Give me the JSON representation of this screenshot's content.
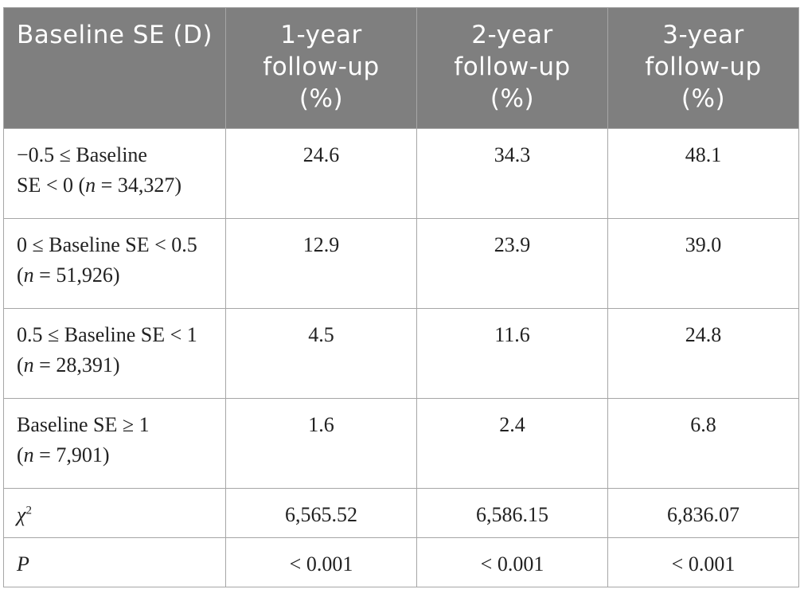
{
  "header": {
    "col1": "Baseline SE (D)",
    "col2": "1-year follow-up (%)",
    "col3": "2-year follow-up (%)",
    "col4": "3-year follow-up (%)"
  },
  "rows": [
    {
      "label_line1": "−0.5 ≤ Baseline",
      "label_line2_prefix": "SE < 0 (",
      "label_line2_n": "n",
      "label_line2_rest": " = 34,327)",
      "v1": "24.6",
      "v2": "34.3",
      "v3": "48.1"
    },
    {
      "label_line1": "0 ≤ Baseline SE < 0.5",
      "label_line2_prefix": "(",
      "label_line2_n": "n",
      "label_line2_rest": " = 51,926)",
      "v1": "12.9",
      "v2": "23.9",
      "v3": "39.0"
    },
    {
      "label_line1": "0.5 ≤ Baseline SE < 1",
      "label_line2_prefix": "(",
      "label_line2_n": "n",
      "label_line2_rest": " = 28,391)",
      "v1": "4.5",
      "v2": "11.6",
      "v3": "24.8"
    },
    {
      "label_line1": "Baseline SE ≥ 1",
      "label_line2_prefix": "(",
      "label_line2_n": "n",
      "label_line2_rest": " = 7,901)",
      "v1": "1.6",
      "v2": "2.4",
      "v3": "6.8"
    }
  ],
  "chi_row": {
    "label": "χ",
    "superscript": "2",
    "v1": "6,565.52",
    "v2": "6,586.15",
    "v3": "6,836.07"
  },
  "p_row": {
    "label": "P",
    "v1": "< 0.001",
    "v2": "< 0.001",
    "v3": "< 0.001"
  }
}
